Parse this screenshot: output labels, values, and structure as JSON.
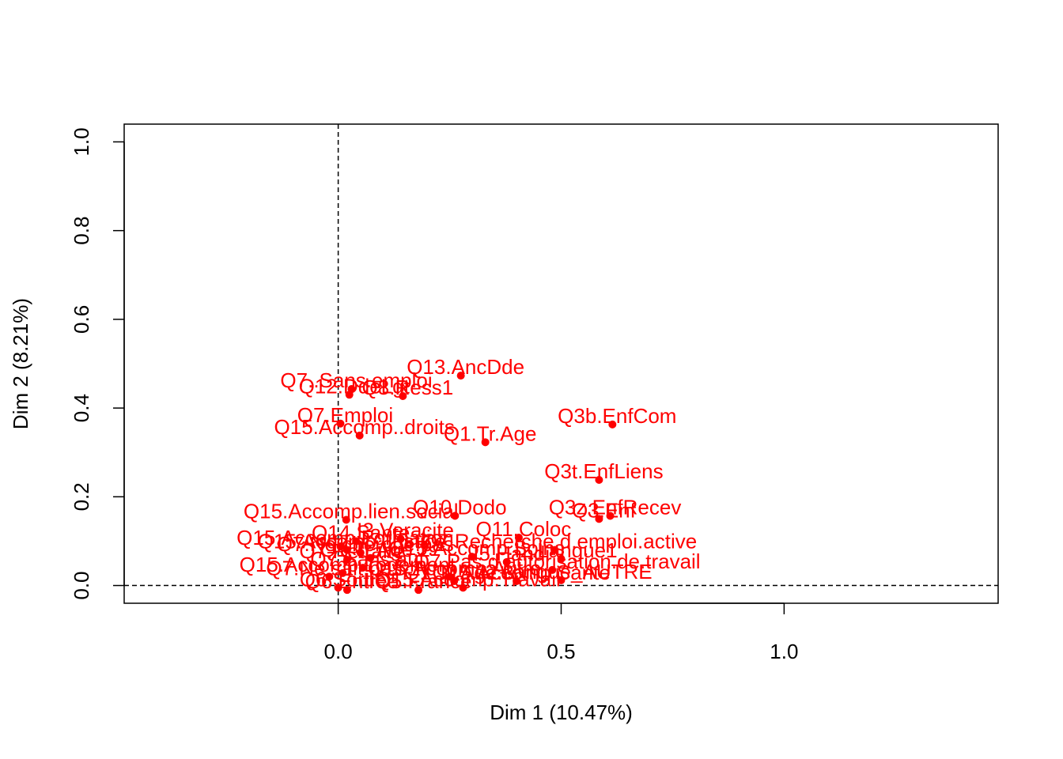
{
  "chart_data": {
    "type": "scatter",
    "title": "",
    "xlabel": "Dim 1 (10.47%)",
    "ylabel": "Dim 2 (8.21%)",
    "xlim": [
      -0.48,
      1.48
    ],
    "ylim": [
      -0.04,
      1.04
    ],
    "x_ticks": [
      0.0,
      0.5,
      1.0
    ],
    "x_tick_labels": [
      "0.0",
      "0.5",
      "1.0"
    ],
    "y_ticks": [
      0.0,
      0.2,
      0.4,
      0.6,
      0.8,
      1.0
    ],
    "y_tick_labels": [
      "0.0",
      "0.2",
      "0.4",
      "0.6",
      "0.8",
      "1.0"
    ],
    "grid": false,
    "reference_lines": {
      "x": 0,
      "y": 0,
      "style": "dashed"
    },
    "point_color": "#ff0000",
    "axis_color": "#000000",
    "points": [
      {
        "label": "Q13.AncDde",
        "x": 0.275,
        "y": 0.473
      },
      {
        "label": "Q7..Sans.emploi",
        "x": 0.03,
        "y": 0.443
      },
      {
        "label": "Q12.DdeLgt",
        "x": 0.025,
        "y": 0.43
      },
      {
        "label": "Q8.Ress1",
        "x": 0.145,
        "y": 0.427
      },
      {
        "label": "Q3b.EnfCom",
        "x": 0.615,
        "y": 0.363
      },
      {
        "label": "Q7.Emploi",
        "x": 0.005,
        "y": 0.365
      },
      {
        "label": "Q15.Accomp..droits",
        "x": 0.048,
        "y": 0.338
      },
      {
        "label": "Q1.Tr.Age",
        "x": 0.33,
        "y": 0.323
      },
      {
        "label": "Q3t.EnfLiens",
        "x": 0.585,
        "y": 0.238
      },
      {
        "label": "Q15.Accomp.lien.social",
        "x": 0.018,
        "y": 0.148
      },
      {
        "label": "Q10.Dodo",
        "x": 0.262,
        "y": 0.157
      },
      {
        "label": "Q3z.EnfRecev",
        "x": 0.61,
        "y": 0.157
      },
      {
        "label": "Q3.Enf",
        "x": 0.585,
        "y": 0.15
      },
      {
        "label": "Q14.Sante",
        "x": 0.04,
        "y": 0.1
      },
      {
        "label": "I3.Veracite",
        "x": 0.14,
        "y": 0.105
      },
      {
        "label": "Q11.Coloc",
        "x": 0.405,
        "y": 0.108
      },
      {
        "label": "Q15.Accomp.Justice",
        "x": 0.02,
        "y": 0.08
      },
      {
        "label": "Q15.Accomp.Formation",
        "x": 0.005,
        "y": 0.088
      },
      {
        "label": "Q7.Ne.cherche.pas",
        "x": 0.05,
        "y": 0.074
      },
      {
        "label": "Q7.Recherche.d.emploi.active",
        "x": 0.485,
        "y": 0.08
      },
      {
        "label": "Q15.Accomp.Soins",
        "x": 0.3,
        "y": 0.065
      },
      {
        "label": "I2.Langue1",
        "x": 0.5,
        "y": 0.06
      },
      {
        "label": "Q7.Retraite",
        "x": 0.02,
        "y": 0.058
      },
      {
        "label": "Q1.Tr.Age.2",
        "x": 0.072,
        "y": 0.062
      },
      {
        "label": "I5.Handi",
        "x": 0.378,
        "y": 0.053
      },
      {
        "label": "Q7.Sans.aut",
        "x": 0.055,
        "y": 0.04
      },
      {
        "label": "Q15.Accomp.Logement",
        "x": 0.01,
        "y": 0.028
      },
      {
        "label": "Q7.Pas.d.autorisation.de.travail",
        "x": 0.48,
        "y": 0.035
      },
      {
        "label": "Q15.Accomp.Autre",
        "x": 0.25,
        "y": 0.02
      },
      {
        "label": "Q7.Ne.sait.pas",
        "x": -0.02,
        "y": 0.02
      },
      {
        "label": "Q1.Tr.Age.3",
        "x": 0.26,
        "y": 0.01
      },
      {
        "label": "Q15.Accomp.Sante",
        "x": 0.4,
        "y": 0.01
      },
      {
        "label": "I2.Langue_AUTRE",
        "x": 0.5,
        "y": 0.012
      },
      {
        "label": "Q6.Sortie",
        "x": 0.0,
        "y": -0.005
      },
      {
        "label": "Q6.Entree",
        "x": 0.02,
        "y": -0.01
      },
      {
        "label": "Q5.France",
        "x": 0.18,
        "y": -0.01
      },
      {
        "label": "Q15.Accomp.Travail",
        "x": 0.28,
        "y": -0.005
      }
    ]
  }
}
